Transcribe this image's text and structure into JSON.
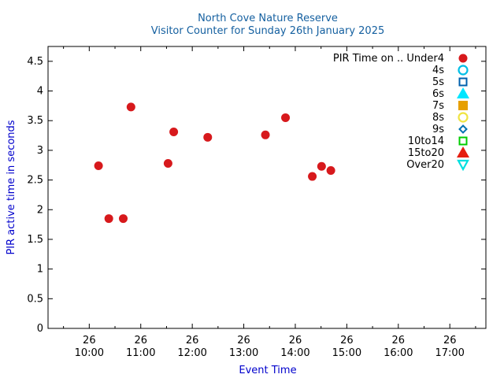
{
  "chart_data": {
    "type": "scatter",
    "title": "North Cove Nature Reserve",
    "subtitle": "Visitor Counter for Sunday 26th January 2025",
    "xlabel": "Event Time",
    "ylabel": "PIR active time in seconds",
    "x_unit": "time of day (hours, 26 Jan 2025)",
    "xlim": [
      9.2,
      17.7
    ],
    "ylim": [
      0,
      4.75
    ],
    "x_ticks": [
      {
        "value": 10,
        "day": "26",
        "time": "10:00"
      },
      {
        "value": 11,
        "day": "26",
        "time": "11:00"
      },
      {
        "value": 12,
        "day": "26",
        "time": "12:00"
      },
      {
        "value": 13,
        "day": "26",
        "time": "13:00"
      },
      {
        "value": 14,
        "day": "26",
        "time": "14:00"
      },
      {
        "value": 15,
        "day": "26",
        "time": "15:00"
      },
      {
        "value": 16,
        "day": "26",
        "time": "16:00"
      },
      {
        "value": 17,
        "day": "26",
        "time": "17:00"
      }
    ],
    "y_ticks": [
      "0",
      "0.5",
      "1",
      "1.5",
      "2",
      "2.5",
      "3",
      "3.5",
      "4",
      "4.5"
    ],
    "y_tick_values": [
      0,
      0.5,
      1,
      1.5,
      2,
      2.5,
      3,
      3.5,
      4,
      4.5
    ],
    "grid": false,
    "legend_position": "top-right",
    "legend_title": "PIR Time on .. ",
    "series": [
      {
        "name": "Under4",
        "marker": "circle-filled",
        "color": "#d7191c",
        "points": [
          {
            "x": 10.18,
            "y": 2.74
          },
          {
            "x": 10.38,
            "y": 1.85
          },
          {
            "x": 10.66,
            "y": 1.85
          },
          {
            "x": 10.81,
            "y": 3.73
          },
          {
            "x": 11.53,
            "y": 2.78
          },
          {
            "x": 11.64,
            "y": 3.31
          },
          {
            "x": 12.3,
            "y": 3.22
          },
          {
            "x": 13.42,
            "y": 3.26
          },
          {
            "x": 13.81,
            "y": 3.55
          },
          {
            "x": 14.33,
            "y": 2.56
          },
          {
            "x": 14.51,
            "y": 2.73
          },
          {
            "x": 14.69,
            "y": 2.66
          }
        ]
      },
      {
        "name": "4s",
        "marker": "circle-open",
        "color": "#00bfe6",
        "points": []
      },
      {
        "name": "5s",
        "marker": "square-open",
        "color": "#0060ad",
        "points": []
      },
      {
        "name": "6s",
        "marker": "triangle-up-filled",
        "color": "#00e6ff",
        "points": []
      },
      {
        "name": "7s",
        "marker": "square-filled",
        "color": "#e69f00",
        "points": []
      },
      {
        "name": "8s",
        "marker": "circle-open",
        "color": "#f0e442",
        "points": []
      },
      {
        "name": "9s",
        "marker": "diamond-open",
        "color": "#0072b2",
        "points": []
      },
      {
        "name": "10to14",
        "marker": "square-open",
        "color": "#00cc00",
        "points": []
      },
      {
        "name": "15to20",
        "marker": "triangle-up-filled",
        "color": "#e51e10",
        "points": []
      },
      {
        "name": "Over20",
        "marker": "triangle-down-open",
        "color": "#00e0e0",
        "points": []
      }
    ]
  },
  "colors": {
    "title": "#1560a0",
    "axis_label": "#0000cc",
    "axis": "#000000"
  }
}
